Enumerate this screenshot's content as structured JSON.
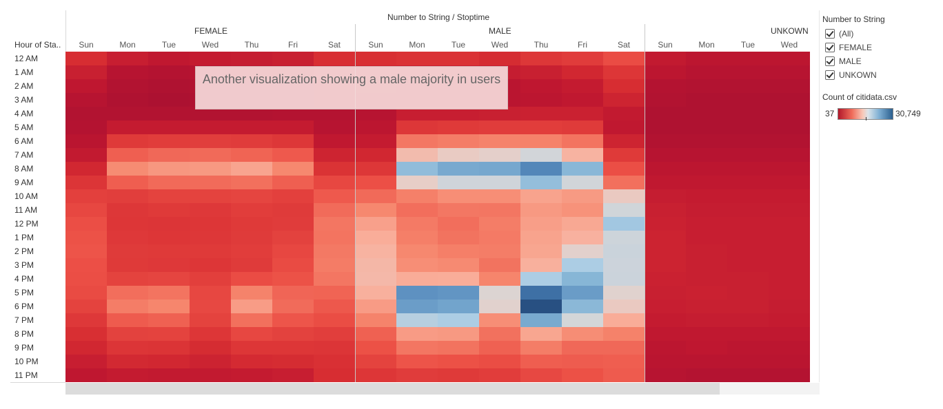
{
  "chart_data": {
    "type": "heatmap",
    "title": "Number to String / Stoptime",
    "row_header": "Hour of Sta..",
    "rows": [
      "12 AM",
      "1 AM",
      "2 AM",
      "3 AM",
      "4 AM",
      "5 AM",
      "6 AM",
      "7 AM",
      "8 AM",
      "9 AM",
      "10 AM",
      "11 AM",
      "12 PM",
      "1 PM",
      "2 PM",
      "3 PM",
      "4 PM",
      "5 PM",
      "6 PM",
      "7 PM",
      "8 PM",
      "9 PM",
      "10 PM",
      "11 PM"
    ],
    "groups": [
      {
        "name": "FEMALE",
        "days": [
          "Sun",
          "Mon",
          "Tue",
          "Wed",
          "Thu",
          "Fri",
          "Sat"
        ]
      },
      {
        "name": "MALE",
        "days": [
          "Sun",
          "Mon",
          "Tue",
          "Wed",
          "Thu",
          "Fri",
          "Sat"
        ]
      },
      {
        "name": "UNKOWN",
        "days": [
          "Sun",
          "Mon",
          "Tue",
          "Wed"
        ]
      }
    ],
    "color_scale": {
      "min": 37,
      "max": 30749,
      "low_color": "#b2182b",
      "mid_color": "#dcdcdc",
      "high_color": "#2b5f8f"
    },
    "values": [
      [
        2500,
        1500,
        1100,
        1300,
        1400,
        1600,
        2600,
        2700,
        2900,
        2900,
        2400,
        3400,
        3800,
        5200,
        1200,
        900,
        900,
        900
      ],
      [
        1600,
        700,
        600,
        700,
        800,
        900,
        1700,
        1800,
        1500,
        1500,
        1400,
        1600,
        2100,
        3300,
        900,
        700,
        700,
        700
      ],
      [
        1000,
        500,
        400,
        500,
        500,
        600,
        1100,
        1200,
        900,
        900,
        800,
        1000,
        1300,
        2500,
        600,
        500,
        500,
        500
      ],
      [
        700,
        400,
        300,
        400,
        400,
        500,
        800,
        900,
        900,
        800,
        800,
        900,
        1100,
        1900,
        500,
        400,
        400,
        400
      ],
      [
        500,
        500,
        500,
        500,
        500,
        600,
        600,
        700,
        1500,
        1500,
        1600,
        1700,
        1700,
        1200,
        400,
        400,
        400,
        400
      ],
      [
        600,
        1300,
        1300,
        1300,
        1300,
        1300,
        700,
        900,
        3400,
        3600,
        3800,
        3900,
        3700,
        1100,
        400,
        400,
        400,
        400
      ],
      [
        800,
        3600,
        3900,
        4000,
        3800,
        3400,
        1100,
        1300,
        8200,
        8600,
        9000,
        8900,
        8000,
        1900,
        500,
        500,
        500,
        500
      ],
      [
        1200,
        6600,
        7200,
        7300,
        6900,
        6200,
        1900,
        2100,
        13200,
        14300,
        14800,
        16500,
        12600,
        3600,
        700,
        700,
        700,
        700
      ],
      [
        2100,
        9600,
        10500,
        10600,
        11500,
        9300,
        3000,
        3400,
        20600,
        22300,
        22400,
        25200,
        21100,
        5400,
        900,
        900,
        900,
        900
      ],
      [
        3200,
        6500,
        7300,
        7400,
        7700,
        6600,
        4800,
        5500,
        14600,
        16800,
        16800,
        20400,
        16600,
        7700,
        1100,
        1100,
        1100,
        1100
      ],
      [
        4200,
        4000,
        4400,
        4400,
        4600,
        4200,
        6200,
        7300,
        8800,
        9800,
        9800,
        11400,
        10700,
        14200,
        1400,
        1300,
        1300,
        1300
      ],
      [
        4800,
        3400,
        3600,
        3500,
        3900,
        3700,
        7400,
        9300,
        7600,
        8200,
        8100,
        10600,
        10100,
        16700,
        1600,
        1400,
        1400,
        1400
      ],
      [
        5400,
        3300,
        3200,
        3300,
        3600,
        3800,
        8100,
        11200,
        8400,
        7600,
        8600,
        11000,
        11800,
        19600,
        1700,
        1500,
        1500,
        1500
      ],
      [
        5700,
        3500,
        3300,
        3400,
        3700,
        4300,
        8000,
        12200,
        8700,
        7900,
        8400,
        11400,
        12500,
        17000,
        1800,
        1500,
        1500,
        1500
      ],
      [
        5800,
        3700,
        3600,
        3600,
        3900,
        4800,
        8300,
        12600,
        9300,
        8700,
        8600,
        11600,
        15000,
        17300,
        1800,
        1600,
        1500,
        1500
      ],
      [
        5500,
        3600,
        3500,
        3300,
        3700,
        5100,
        8500,
        12900,
        9800,
        9500,
        7900,
        12400,
        19000,
        17100,
        1800,
        1600,
        1500,
        1500
      ],
      [
        5400,
        4400,
        4600,
        4100,
        5200,
        5700,
        8100,
        13000,
        12100,
        12200,
        9100,
        19000,
        21200,
        17200,
        1700,
        1600,
        1600,
        1500
      ],
      [
        5100,
        7600,
        8000,
        4800,
        9000,
        7000,
        6900,
        12400,
        24200,
        23900,
        15600,
        27700,
        23300,
        15200,
        1600,
        1700,
        1600,
        1500
      ],
      [
        4400,
        8600,
        9200,
        4900,
        10900,
        7400,
        6100,
        10800,
        23200,
        22700,
        15100,
        30749,
        21000,
        14200,
        1500,
        1600,
        1600,
        1400
      ],
      [
        3500,
        6300,
        6700,
        4400,
        7700,
        5900,
        5300,
        9000,
        18400,
        19000,
        9800,
        22200,
        16400,
        12100,
        1300,
        1400,
        1400,
        1300
      ],
      [
        2700,
        4300,
        4400,
        3300,
        4800,
        4300,
        4000,
        6700,
        10800,
        10600,
        7800,
        11600,
        9700,
        8900,
        1100,
        1100,
        1100,
        1100
      ],
      [
        2100,
        3200,
        3100,
        2400,
        3300,
        3300,
        3200,
        5600,
        8100,
        7900,
        6700,
        8600,
        7200,
        7200,
        900,
        1000,
        900,
        900
      ],
      [
        1500,
        2200,
        2100,
        1800,
        2300,
        2400,
        2800,
        4400,
        5800,
        5600,
        5300,
        6500,
        6400,
        6500,
        800,
        800,
        800,
        800
      ],
      [
        1000,
        1300,
        1200,
        1200,
        1300,
        1500,
        2500,
        3300,
        3800,
        3600,
        3900,
        4900,
        5600,
        6300,
        700,
        600,
        600,
        600
      ]
    ],
    "annotation": "Another visualization showing a male majority in users",
    "legend": {
      "filter_title": "Number to String",
      "filter_items": [
        "(All)",
        "FEMALE",
        "MALE",
        "UNKOWN"
      ],
      "color_title": "Count of citidata.csv",
      "color_min_label": "37",
      "color_max_label": "30,749"
    }
  }
}
